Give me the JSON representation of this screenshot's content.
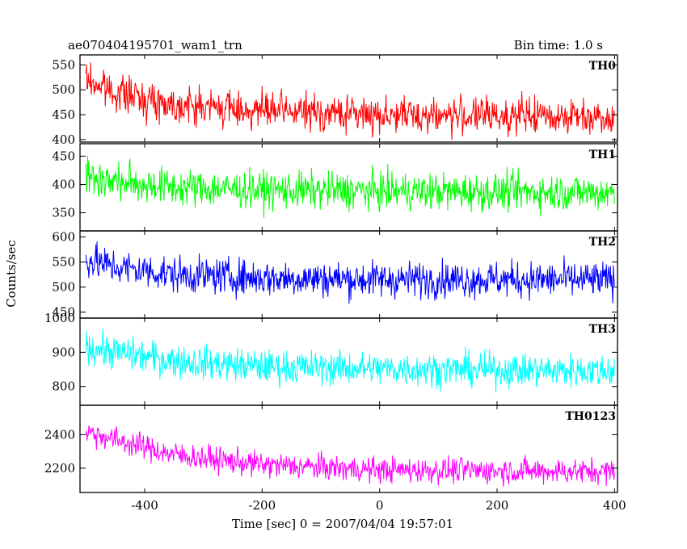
{
  "title_left": "ae070404195701_wam1_trn",
  "title_right": "Bin time: 1.0 s",
  "xlabel": "Time [sec] 0 = 2007/04/04 19:57:01",
  "ylabel": "Counts/sec",
  "chart_data": {
    "type": "line",
    "title": "ae070404195701_wam1_trn",
    "bin_time": "Bin time: 1.0 s",
    "xlabel": "Time [sec] 0 = 2007/04/04 19:57:01",
    "ylabel": "Counts/sec",
    "xlim": [
      -510,
      405
    ],
    "x_ticks": [
      -400,
      -200,
      0,
      200,
      400
    ],
    "x_range_data": [
      -500,
      400
    ],
    "panels": [
      {
        "name": "TH0",
        "color": "#ff0000",
        "ylim": [
          395,
          570
        ],
        "y_ticks": [
          400,
          450,
          500,
          550
        ],
        "trend": [
          [
            -500,
            520
          ],
          [
            -450,
            495
          ],
          [
            -350,
            470
          ],
          [
            -200,
            458
          ],
          [
            0,
            450
          ],
          [
            200,
            448
          ],
          [
            400,
            447
          ]
        ],
        "noise_amplitude": 33
      },
      {
        "name": "TH1",
        "color": "#00ff00",
        "ylim": [
          318,
          472
        ],
        "y_ticks": [
          350,
          400,
          450
        ],
        "trend": [
          [
            -500,
            415
          ],
          [
            -450,
            405
          ],
          [
            -350,
            395
          ],
          [
            -200,
            390
          ],
          [
            0,
            388
          ],
          [
            200,
            387
          ],
          [
            400,
            386
          ]
        ],
        "noise_amplitude": 30
      },
      {
        "name": "TH2",
        "color": "#0000ff",
        "ylim": [
          438,
          612
        ],
        "y_ticks": [
          450,
          500,
          550,
          600
        ],
        "trend": [
          [
            -500,
            555
          ],
          [
            -450,
            540
          ],
          [
            -350,
            525
          ],
          [
            -200,
            518
          ],
          [
            0,
            515
          ],
          [
            200,
            515
          ],
          [
            400,
            514
          ]
        ],
        "noise_amplitude": 33
      },
      {
        "name": "TH3",
        "color": "#00ffff",
        "ylim": [
          745,
          1000
        ],
        "y_ticks": [
          800,
          900,
          1000
        ],
        "trend": [
          [
            -500,
            915
          ],
          [
            -450,
            900
          ],
          [
            -350,
            875
          ],
          [
            -200,
            858
          ],
          [
            0,
            852
          ],
          [
            200,
            848
          ],
          [
            400,
            846
          ]
        ],
        "noise_amplitude": 45
      },
      {
        "name": "TH0123",
        "color": "#ff00ff",
        "ylim": [
          2055,
          2575
        ],
        "y_ticks": [
          2200,
          2400
        ],
        "trend": [
          [
            -500,
            2420
          ],
          [
            -450,
            2370
          ],
          [
            -350,
            2280
          ],
          [
            -200,
            2220
          ],
          [
            0,
            2190
          ],
          [
            200,
            2185
          ],
          [
            400,
            2180
          ]
        ],
        "noise_amplitude": 70
      }
    ]
  }
}
